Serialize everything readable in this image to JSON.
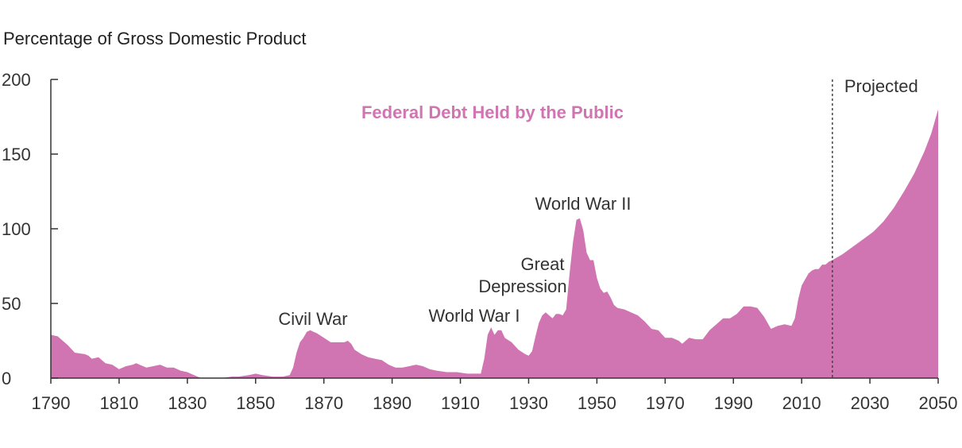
{
  "chart_data": {
    "type": "area",
    "title": "",
    "ylabel": "Percentage of Gross Domestic Product",
    "xlabel": "",
    "xlim": [
      1790,
      2050
    ],
    "ylim": [
      0,
      200
    ],
    "x_ticks": [
      1790,
      1810,
      1830,
      1850,
      1870,
      1890,
      1910,
      1930,
      1950,
      1970,
      1990,
      2010,
      2030,
      2050
    ],
    "y_ticks": [
      0,
      50,
      100,
      150,
      200
    ],
    "grid": false,
    "projection_start": 2019,
    "projection_label": "Projected",
    "color": "#d175b2",
    "series": [
      {
        "name": "Federal Debt Held by the Public",
        "points": [
          [
            1790,
            29
          ],
          [
            1792,
            28
          ],
          [
            1795,
            22
          ],
          [
            1797,
            17
          ],
          [
            1800,
            16
          ],
          [
            1801,
            15
          ],
          [
            1802,
            13
          ],
          [
            1804,
            14
          ],
          [
            1806,
            10
          ],
          [
            1808,
            9
          ],
          [
            1810,
            6
          ],
          [
            1812,
            8
          ],
          [
            1814,
            9
          ],
          [
            1815,
            10
          ],
          [
            1816,
            9
          ],
          [
            1818,
            7
          ],
          [
            1820,
            8
          ],
          [
            1822,
            9
          ],
          [
            1824,
            7
          ],
          [
            1826,
            7
          ],
          [
            1828,
            5
          ],
          [
            1830,
            4
          ],
          [
            1832,
            2
          ],
          [
            1834,
            0
          ],
          [
            1840,
            0
          ],
          [
            1843,
            1
          ],
          [
            1845,
            1
          ],
          [
            1848,
            2
          ],
          [
            1850,
            3
          ],
          [
            1852,
            2
          ],
          [
            1855,
            1
          ],
          [
            1858,
            1
          ],
          [
            1860,
            2
          ],
          [
            1861,
            7
          ],
          [
            1862,
            17
          ],
          [
            1863,
            24
          ],
          [
            1864,
            27
          ],
          [
            1865,
            31
          ],
          [
            1866,
            32
          ],
          [
            1867,
            31
          ],
          [
            1868,
            30
          ],
          [
            1870,
            27
          ],
          [
            1872,
            24
          ],
          [
            1874,
            24
          ],
          [
            1876,
            24
          ],
          [
            1877,
            25
          ],
          [
            1878,
            23
          ],
          [
            1879,
            19
          ],
          [
            1881,
            16
          ],
          [
            1883,
            14
          ],
          [
            1885,
            13
          ],
          [
            1887,
            12
          ],
          [
            1889,
            9
          ],
          [
            1891,
            7
          ],
          [
            1893,
            7
          ],
          [
            1895,
            8
          ],
          [
            1897,
            9
          ],
          [
            1899,
            8
          ],
          [
            1901,
            6
          ],
          [
            1903,
            5
          ],
          [
            1906,
            4
          ],
          [
            1909,
            4
          ],
          [
            1912,
            3
          ],
          [
            1914,
            3
          ],
          [
            1916,
            3
          ],
          [
            1917,
            13
          ],
          [
            1918,
            29
          ],
          [
            1919,
            34
          ],
          [
            1920,
            29
          ],
          [
            1921,
            32
          ],
          [
            1922,
            32
          ],
          [
            1923,
            27
          ],
          [
            1925,
            24
          ],
          [
            1927,
            19
          ],
          [
            1929,
            16
          ],
          [
            1930,
            15
          ],
          [
            1931,
            18
          ],
          [
            1932,
            28
          ],
          [
            1933,
            37
          ],
          [
            1934,
            42
          ],
          [
            1935,
            44
          ],
          [
            1936,
            42
          ],
          [
            1937,
            40
          ],
          [
            1938,
            43
          ],
          [
            1939,
            43
          ],
          [
            1940,
            42
          ],
          [
            1941,
            46
          ],
          [
            1942,
            70
          ],
          [
            1943,
            91
          ],
          [
            1944,
            106
          ],
          [
            1945,
            107
          ],
          [
            1946,
            99
          ],
          [
            1947,
            84
          ],
          [
            1948,
            79
          ],
          [
            1949,
            79
          ],
          [
            1950,
            67
          ],
          [
            1951,
            60
          ],
          [
            1952,
            57
          ],
          [
            1953,
            58
          ],
          [
            1954,
            54
          ],
          [
            1955,
            49
          ],
          [
            1956,
            47
          ],
          [
            1958,
            46
          ],
          [
            1960,
            44
          ],
          [
            1962,
            42
          ],
          [
            1964,
            38
          ],
          [
            1966,
            33
          ],
          [
            1968,
            32
          ],
          [
            1970,
            27
          ],
          [
            1972,
            27
          ],
          [
            1974,
            25
          ],
          [
            1975,
            23
          ],
          [
            1977,
            27
          ],
          [
            1979,
            26
          ],
          [
            1981,
            26
          ],
          [
            1983,
            32
          ],
          [
            1985,
            36
          ],
          [
            1987,
            40
          ],
          [
            1989,
            40
          ],
          [
            1991,
            43
          ],
          [
            1993,
            48
          ],
          [
            1995,
            48
          ],
          [
            1997,
            47
          ],
          [
            1999,
            41
          ],
          [
            2001,
            33
          ],
          [
            2003,
            35
          ],
          [
            2005,
            36
          ],
          [
            2007,
            35
          ],
          [
            2008,
            40
          ],
          [
            2009,
            53
          ],
          [
            2010,
            62
          ],
          [
            2011,
            66
          ],
          [
            2012,
            70
          ],
          [
            2013,
            72
          ],
          [
            2014,
            73
          ],
          [
            2015,
            73
          ],
          [
            2016,
            76
          ],
          [
            2017,
            76
          ],
          [
            2018,
            78
          ],
          [
            2019,
            79
          ],
          [
            2022,
            83
          ],
          [
            2025,
            88
          ],
          [
            2028,
            93
          ],
          [
            2031,
            98
          ],
          [
            2034,
            105
          ],
          [
            2037,
            114
          ],
          [
            2040,
            125
          ],
          [
            2043,
            137
          ],
          [
            2046,
            152
          ],
          [
            2048,
            164
          ],
          [
            2050,
            180
          ]
        ]
      }
    ],
    "annotations": [
      {
        "text": "Civil War",
        "x": 1868
      },
      {
        "text": "World War I",
        "x": 1913
      },
      {
        "text": "Great",
        "x": 1939
      },
      {
        "text": "Depression",
        "x": 1939
      },
      {
        "text": "World War II",
        "x": 1945
      }
    ]
  }
}
